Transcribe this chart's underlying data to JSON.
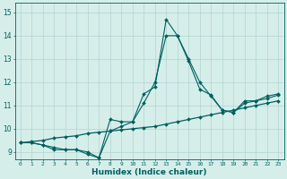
{
  "title": "",
  "xlabel": "Humidex (Indice chaleur)",
  "ylabel": "",
  "background_color": "#d6eeea",
  "grid_color": "#b8d8d4",
  "line_color": "#006060",
  "xlim": [
    -0.5,
    23.5
  ],
  "ylim": [
    8.7,
    15.4
  ],
  "yticks": [
    9,
    10,
    11,
    12,
    13,
    14,
    15
  ],
  "xticks": [
    0,
    1,
    2,
    3,
    4,
    5,
    6,
    7,
    8,
    9,
    10,
    11,
    12,
    13,
    14,
    15,
    16,
    17,
    18,
    19,
    20,
    21,
    22,
    23
  ],
  "line1_x": [
    0,
    1,
    2,
    3,
    4,
    5,
    6,
    7,
    8,
    9,
    10,
    11,
    12,
    13,
    14,
    15,
    16,
    17,
    18,
    19,
    20,
    21,
    22,
    23
  ],
  "line1_y": [
    9.4,
    9.4,
    9.3,
    9.1,
    9.1,
    9.1,
    8.9,
    8.75,
    9.9,
    10.1,
    10.3,
    11.5,
    11.8,
    14.7,
    14.0,
    13.0,
    12.0,
    11.4,
    10.8,
    10.7,
    11.2,
    11.2,
    11.4,
    11.5
  ],
  "line2_x": [
    0,
    1,
    2,
    3,
    4,
    5,
    6,
    7,
    8,
    9,
    10,
    11,
    12,
    13,
    14,
    15,
    16,
    17,
    18,
    19,
    20,
    21,
    22,
    23
  ],
  "line2_y": [
    9.4,
    9.4,
    9.3,
    9.2,
    9.1,
    9.1,
    9.0,
    8.75,
    10.4,
    10.3,
    10.3,
    11.1,
    12.0,
    14.0,
    14.0,
    12.9,
    11.7,
    11.45,
    10.8,
    10.7,
    11.1,
    11.2,
    11.3,
    11.45
  ],
  "line3_x": [
    0,
    1,
    2,
    3,
    4,
    5,
    6,
    7,
    8,
    9,
    10,
    11,
    12,
    13,
    14,
    15,
    16,
    17,
    18,
    19,
    20,
    21,
    22,
    23
  ],
  "line3_y": [
    9.4,
    9.45,
    9.5,
    9.6,
    9.65,
    9.7,
    9.8,
    9.85,
    9.9,
    9.95,
    10.0,
    10.05,
    10.1,
    10.2,
    10.3,
    10.4,
    10.5,
    10.6,
    10.7,
    10.8,
    10.9,
    11.0,
    11.1,
    11.2
  ]
}
